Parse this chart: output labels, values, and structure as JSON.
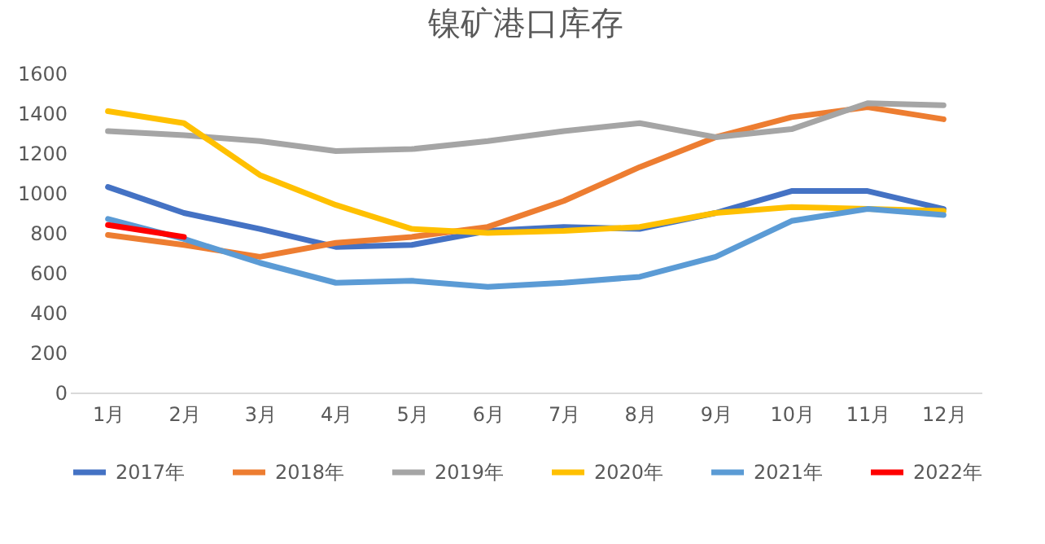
{
  "chart_data": {
    "type": "line",
    "title": "镍矿港口库存",
    "categories": [
      "1月",
      "2月",
      "3月",
      "4月",
      "5月",
      "6月",
      "7月",
      "8月",
      "9月",
      "10月",
      "11月",
      "12月"
    ],
    "series": [
      {
        "name": "2017年",
        "color": "#4472c4",
        "values": [
          1030,
          900,
          820,
          730,
          740,
          810,
          830,
          820,
          900,
          1010,
          1010,
          920
        ]
      },
      {
        "name": "2018年",
        "color": "#ed7d31",
        "values": [
          790,
          740,
          680,
          750,
          780,
          830,
          960,
          1130,
          1280,
          1380,
          1430,
          1370
        ]
      },
      {
        "name": "2019年",
        "color": "#a5a5a5",
        "values": [
          1310,
          1290,
          1260,
          1210,
          1220,
          1260,
          1310,
          1350,
          1280,
          1320,
          1450,
          1440
        ]
      },
      {
        "name": "2020年",
        "color": "#ffc000",
        "values": [
          1410,
          1350,
          1090,
          940,
          820,
          800,
          810,
          830,
          900,
          930,
          920,
          910
        ]
      },
      {
        "name": "2021年",
        "color": "#5b9bd5",
        "values": [
          870,
          770,
          650,
          550,
          560,
          530,
          550,
          580,
          680,
          860,
          920,
          890
        ]
      },
      {
        "name": "2022年",
        "color": "#ff0000",
        "values": [
          840,
          780,
          null,
          null,
          null,
          null,
          null,
          null,
          null,
          null,
          null,
          null
        ]
      }
    ],
    "ylim": [
      0,
      1600
    ],
    "yticks": [
      0,
      200,
      400,
      600,
      800,
      1000,
      1200,
      1400,
      1600
    ],
    "grid": false,
    "legend": "bottom"
  }
}
